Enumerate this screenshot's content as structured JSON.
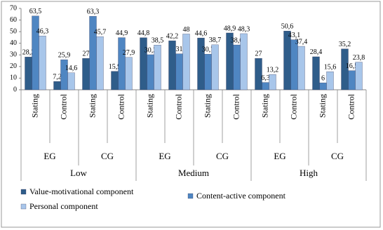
{
  "chart_data": {
    "type": "bar",
    "categories": [
      "Stating",
      "Control",
      "Stating",
      "Control",
      "Stating",
      "Control",
      "Stating",
      "Control",
      "Stating",
      "Control",
      "Stating",
      "Control"
    ],
    "subgroups": [
      "EG",
      "CG",
      "EG",
      "CG",
      "EG",
      "CG"
    ],
    "groups": [
      "Low",
      "Medium",
      "High"
    ],
    "series": [
      {
        "name": "Value-motivational component",
        "color": "#2f5d8a",
        "values": [
          28.2,
          7.2,
          27,
          15.9,
          44.8,
          42.2,
          44.6,
          48.9,
          27,
          50.6,
          28.4,
          35.2
        ],
        "value_labels": [
          "28,2",
          "7,2",
          "27",
          "15,9",
          "44,8",
          "42,2",
          "44,6",
          "48,9",
          "27",
          "50,6",
          "28,4",
          "35,2"
        ]
      },
      {
        "name": "Content-active component",
        "color": "#4f86c2",
        "values": [
          63.5,
          25.9,
          63.3,
          44.9,
          30.2,
          31,
          30.7,
          38.6,
          6.3,
          43.1,
          6,
          16.5
        ],
        "value_labels": [
          "63,5",
          "25,9",
          "63,3",
          "44,9",
          "30,2",
          "31",
          "30,7",
          "38,6",
          "6,3",
          "43,1",
          "6",
          "16,5"
        ]
      },
      {
        "name": "Personal component",
        "color": "#a8c6ea",
        "values": [
          46.3,
          14.6,
          45.7,
          27.9,
          38.5,
          48,
          38.7,
          48.3,
          13.2,
          37.4,
          15.6,
          23.8
        ],
        "value_labels": [
          "46,3",
          "14,6",
          "45,7",
          "27,9",
          "38,5",
          "48",
          "38,7",
          "48,3",
          "13,2",
          "37,4",
          "15,6",
          "23,8"
        ]
      }
    ],
    "ylim": [
      0,
      70
    ],
    "yticks": [
      0,
      10,
      20,
      30,
      40,
      50,
      60,
      70
    ],
    "grid": false
  }
}
